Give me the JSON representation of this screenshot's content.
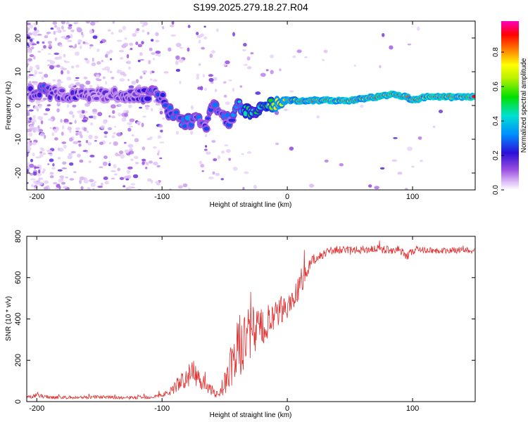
{
  "title": "S199.2025.279.18.27.R04",
  "chart_data": [
    {
      "type": "heatmap",
      "name": "spectrogram",
      "xlabel": "Height of straight line (km)",
      "ylabel": "Frequency (Hz)",
      "xlim": [
        -208,
        150
      ],
      "ylim": [
        -25,
        25
      ],
      "xticks": [
        "-200",
        "-100",
        "0",
        "100"
      ],
      "xtick_values": [
        -200,
        -100,
        0,
        100
      ],
      "yticks": [
        "-20",
        "-10",
        "0",
        "10",
        "20"
      ],
      "ytick_values": [
        -20,
        -10,
        0,
        10,
        20
      ],
      "colorbar": {
        "label": "Normalized spectral amplitude",
        "range": [
          0,
          0.98
        ],
        "ticks": [
          "0.0",
          "0.2",
          "0.4",
          "0.6",
          "0.8"
        ],
        "tick_values": [
          0,
          0.2,
          0.4,
          0.6,
          0.8
        ]
      },
      "ridge": {
        "x": [
          -205,
          -195,
          -185,
          -175,
          -165,
          -150,
          -135,
          -120,
          -110,
          -100,
          -95,
          -90,
          -85,
          -80,
          -75,
          -70,
          -65,
          -60,
          -55,
          -50,
          -45,
          -40,
          -35,
          -30,
          -20,
          -10,
          0,
          10,
          20,
          30,
          40,
          50,
          60,
          70,
          80,
          85,
          90,
          95,
          100,
          110,
          120,
          130,
          140,
          150
        ],
        "y": [
          3.5,
          4.5,
          3.5,
          3.0,
          3.5,
          3.0,
          3.5,
          3.0,
          3.5,
          3.0,
          -1.5,
          -3.0,
          -4.0,
          -5.0,
          -4.0,
          -5.0,
          -6.0,
          0.5,
          -1.5,
          -3.5,
          -5.0,
          0.0,
          -1.0,
          -1.5,
          -0.5,
          0.5,
          1.5,
          1.5,
          1.5,
          1.5,
          1.5,
          1.5,
          2.0,
          2.5,
          3.0,
          3.5,
          3.0,
          2.5,
          1.5,
          2.5,
          2.5,
          2.5,
          2.5,
          2.5
        ],
        "amplitude": [
          0.2,
          0.3,
          0.2,
          0.2,
          0.2,
          0.15,
          0.2,
          0.2,
          0.25,
          0.25,
          0.3,
          0.3,
          0.35,
          0.35,
          0.3,
          0.3,
          0.25,
          0.3,
          0.3,
          0.3,
          0.3,
          0.35,
          0.45,
          0.5,
          0.6,
          0.7,
          0.8,
          0.85,
          0.9,
          0.9,
          0.92,
          0.92,
          0.92,
          0.95,
          0.95,
          0.95,
          0.9,
          0.9,
          0.85,
          0.95,
          0.95,
          0.95,
          0.95,
          0.95
        ]
      }
    },
    {
      "type": "line",
      "name": "snr",
      "xlabel": "Height of straight line (km)",
      "ylabel": "SNR (10 * v/v)",
      "xlim": [
        -208,
        150
      ],
      "ylim": [
        0,
        800
      ],
      "xticks": [
        "-200",
        "-100",
        "0",
        "100"
      ],
      "xtick_values": [
        -200,
        -100,
        0,
        100
      ],
      "yticks": [
        "0",
        "200",
        "400",
        "600",
        "800"
      ],
      "ytick_values": [
        0,
        200,
        400,
        600,
        800
      ],
      "series": [
        {
          "name": "SNR",
          "color": "#e03030",
          "x": [
            -208,
            -200,
            -190,
            -180,
            -170,
            -160,
            -150,
            -140,
            -130,
            -120,
            -110,
            -100,
            -95,
            -90,
            -85,
            -80,
            -75,
            -70,
            -65,
            -60,
            -55,
            -50,
            -45,
            -40,
            -35,
            -30,
            -25,
            -20,
            -15,
            -10,
            -5,
            0,
            5,
            10,
            15,
            20,
            25,
            30,
            35,
            40,
            50,
            60,
            70,
            80,
            90,
            95,
            100,
            110,
            120,
            130,
            140,
            150
          ],
          "y": [
            20,
            30,
            22,
            20,
            20,
            22,
            22,
            20,
            18,
            20,
            22,
            30,
            45,
            70,
            95,
            120,
            140,
            110,
            80,
            45,
            35,
            90,
            160,
            250,
            300,
            320,
            340,
            360,
            380,
            400,
            440,
            460,
            500,
            560,
            620,
            680,
            700,
            720,
            730,
            735,
            730,
            735,
            740,
            735,
            735,
            700,
            730,
            735,
            730,
            730,
            735,
            730
          ],
          "noise": [
            10,
            10,
            9,
            8,
            8,
            8,
            8,
            8,
            8,
            8,
            9,
            10,
            20,
            30,
            40,
            55,
            60,
            50,
            35,
            20,
            18,
            60,
            110,
            150,
            160,
            140,
            110,
            100,
            90,
            80,
            70,
            60,
            60,
            55,
            45,
            30,
            25,
            20,
            20,
            20,
            20,
            20,
            20,
            20,
            20,
            20,
            20,
            15,
            15,
            15,
            15,
            15
          ]
        }
      ]
    }
  ]
}
